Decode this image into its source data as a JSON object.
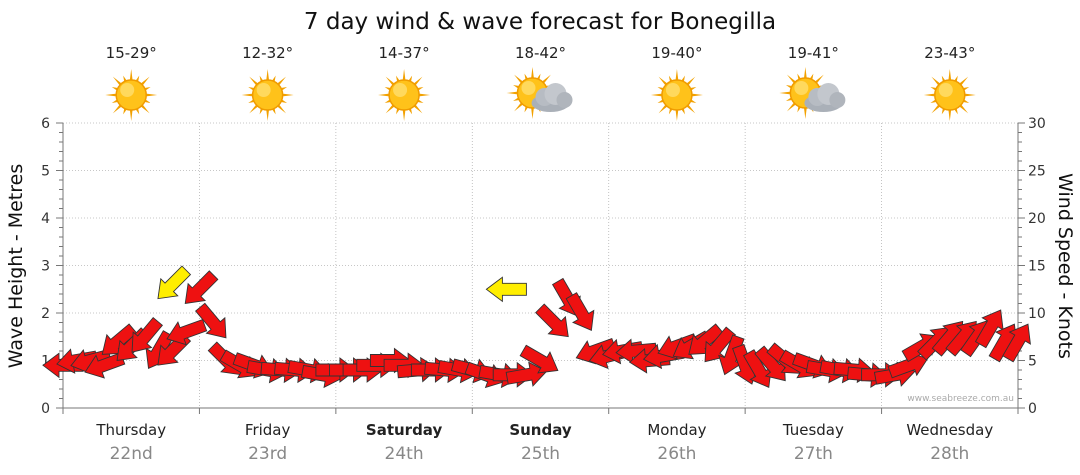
{
  "chart_data": {
    "type": "line",
    "title": "7 day wind & wave forecast for Bonegilla",
    "ylabel": "Wave Height - Metres",
    "y2label": "Wind Speed - Knots",
    "ylim": [
      0,
      6
    ],
    "y2lim": [
      0,
      30
    ],
    "yticks": [
      "0",
      "1",
      "2",
      "3",
      "4",
      "5",
      "6"
    ],
    "y2ticks": [
      "0",
      "5",
      "10",
      "15",
      "20",
      "25",
      "30"
    ],
    "grid": true,
    "days": [
      {
        "name": "Thursday",
        "date": "22nd",
        "temp": "15-29°",
        "icon": "sun-icon",
        "bold": false
      },
      {
        "name": "Friday",
        "date": "23rd",
        "temp": "12-32°",
        "icon": "sun-icon",
        "bold": false
      },
      {
        "name": "Saturday",
        "date": "24th",
        "temp": "14-37°",
        "icon": "sun-icon",
        "bold": true
      },
      {
        "name": "Sunday",
        "date": "25th",
        "temp": "18-42°",
        "icon": "sun-cloud-icon",
        "bold": true
      },
      {
        "name": "Monday",
        "date": "26th",
        "temp": "19-40°",
        "icon": "sun-icon",
        "bold": false
      },
      {
        "name": "Tuesday",
        "date": "27th",
        "temp": "19-41°",
        "icon": "sun-cloud-icon",
        "bold": false
      },
      {
        "name": "Wednesday",
        "date": "28th",
        "temp": "23-43°",
        "icon": "sun-icon",
        "bold": false
      }
    ],
    "series": [
      {
        "name": "Wind Speed",
        "units": "knots",
        "x_days": [
          0.0,
          0.1,
          0.2,
          0.3,
          0.4,
          0.5,
          0.6,
          0.7,
          0.8,
          0.9,
          1.0,
          1.1,
          1.2,
          1.3,
          1.4,
          1.5,
          1.6,
          1.7,
          1.8,
          1.9,
          2.0,
          2.1,
          2.2,
          2.3,
          2.4,
          2.5,
          2.6,
          2.7,
          2.8,
          2.9,
          3.0,
          3.1,
          3.2,
          3.3,
          3.4,
          3.5,
          3.6,
          3.7,
          3.8,
          3.9,
          4.0,
          4.1,
          4.2,
          4.3,
          4.4,
          4.5,
          4.6,
          4.7,
          4.8,
          4.9,
          5.0,
          5.1,
          5.2,
          5.3,
          5.4,
          5.5,
          5.6,
          5.7,
          5.8,
          5.9,
          6.0,
          6.1,
          6.2,
          6.3,
          6.4,
          6.5,
          6.6,
          6.7,
          6.8,
          6.9,
          7.0
        ],
        "values": [
          4.5,
          5,
          5,
          4.5,
          7,
          6.5,
          7.5,
          6,
          6,
          8,
          12.5,
          9,
          5,
          4.5,
          4.5,
          4,
          4,
          4,
          4,
          3.5,
          4,
          4,
          4,
          4.5,
          5,
          4.5,
          4,
          4,
          4,
          4,
          4,
          3.5,
          3.5,
          3.5,
          3.5,
          5,
          9,
          11.5,
          10,
          6,
          5.5,
          6,
          6,
          5,
          5.5,
          6.5,
          6.5,
          7,
          6.5,
          5.5,
          4.5,
          4,
          4.5,
          5,
          4.5,
          4.5,
          4,
          4,
          4,
          3.5,
          3.5,
          3.5,
          4.5,
          6.5,
          7,
          7.5,
          7.5,
          7.5,
          8.5,
          7,
          7
        ],
        "direction_deg": [
          270,
          260,
          255,
          250,
          230,
          225,
          220,
          210,
          225,
          250,
          225,
          140,
          135,
          120,
          110,
          100,
          95,
          95,
          100,
          100,
          90,
          90,
          90,
          90,
          90,
          90,
          85,
          90,
          95,
          100,
          105,
          110,
          100,
          90,
          80,
          120,
          135,
          150,
          150,
          250,
          255,
          260,
          265,
          265,
          260,
          250,
          240,
          230,
          220,
          200,
          160,
          150,
          140,
          130,
          120,
          110,
          100,
          100,
          95,
          95,
          90,
          80,
          70,
          60,
          45,
          40,
          40,
          35,
          30,
          30,
          30
        ]
      }
    ],
    "highlight_arrows": [
      {
        "x_day": 0.8,
        "value": 13,
        "direction_deg": 225,
        "color": "#ffee00"
      },
      {
        "x_day": 3.25,
        "value": 12.5,
        "direction_deg": 270,
        "color": "#ffee00"
      }
    ],
    "watermark": "www.seabreeze.com.au"
  }
}
